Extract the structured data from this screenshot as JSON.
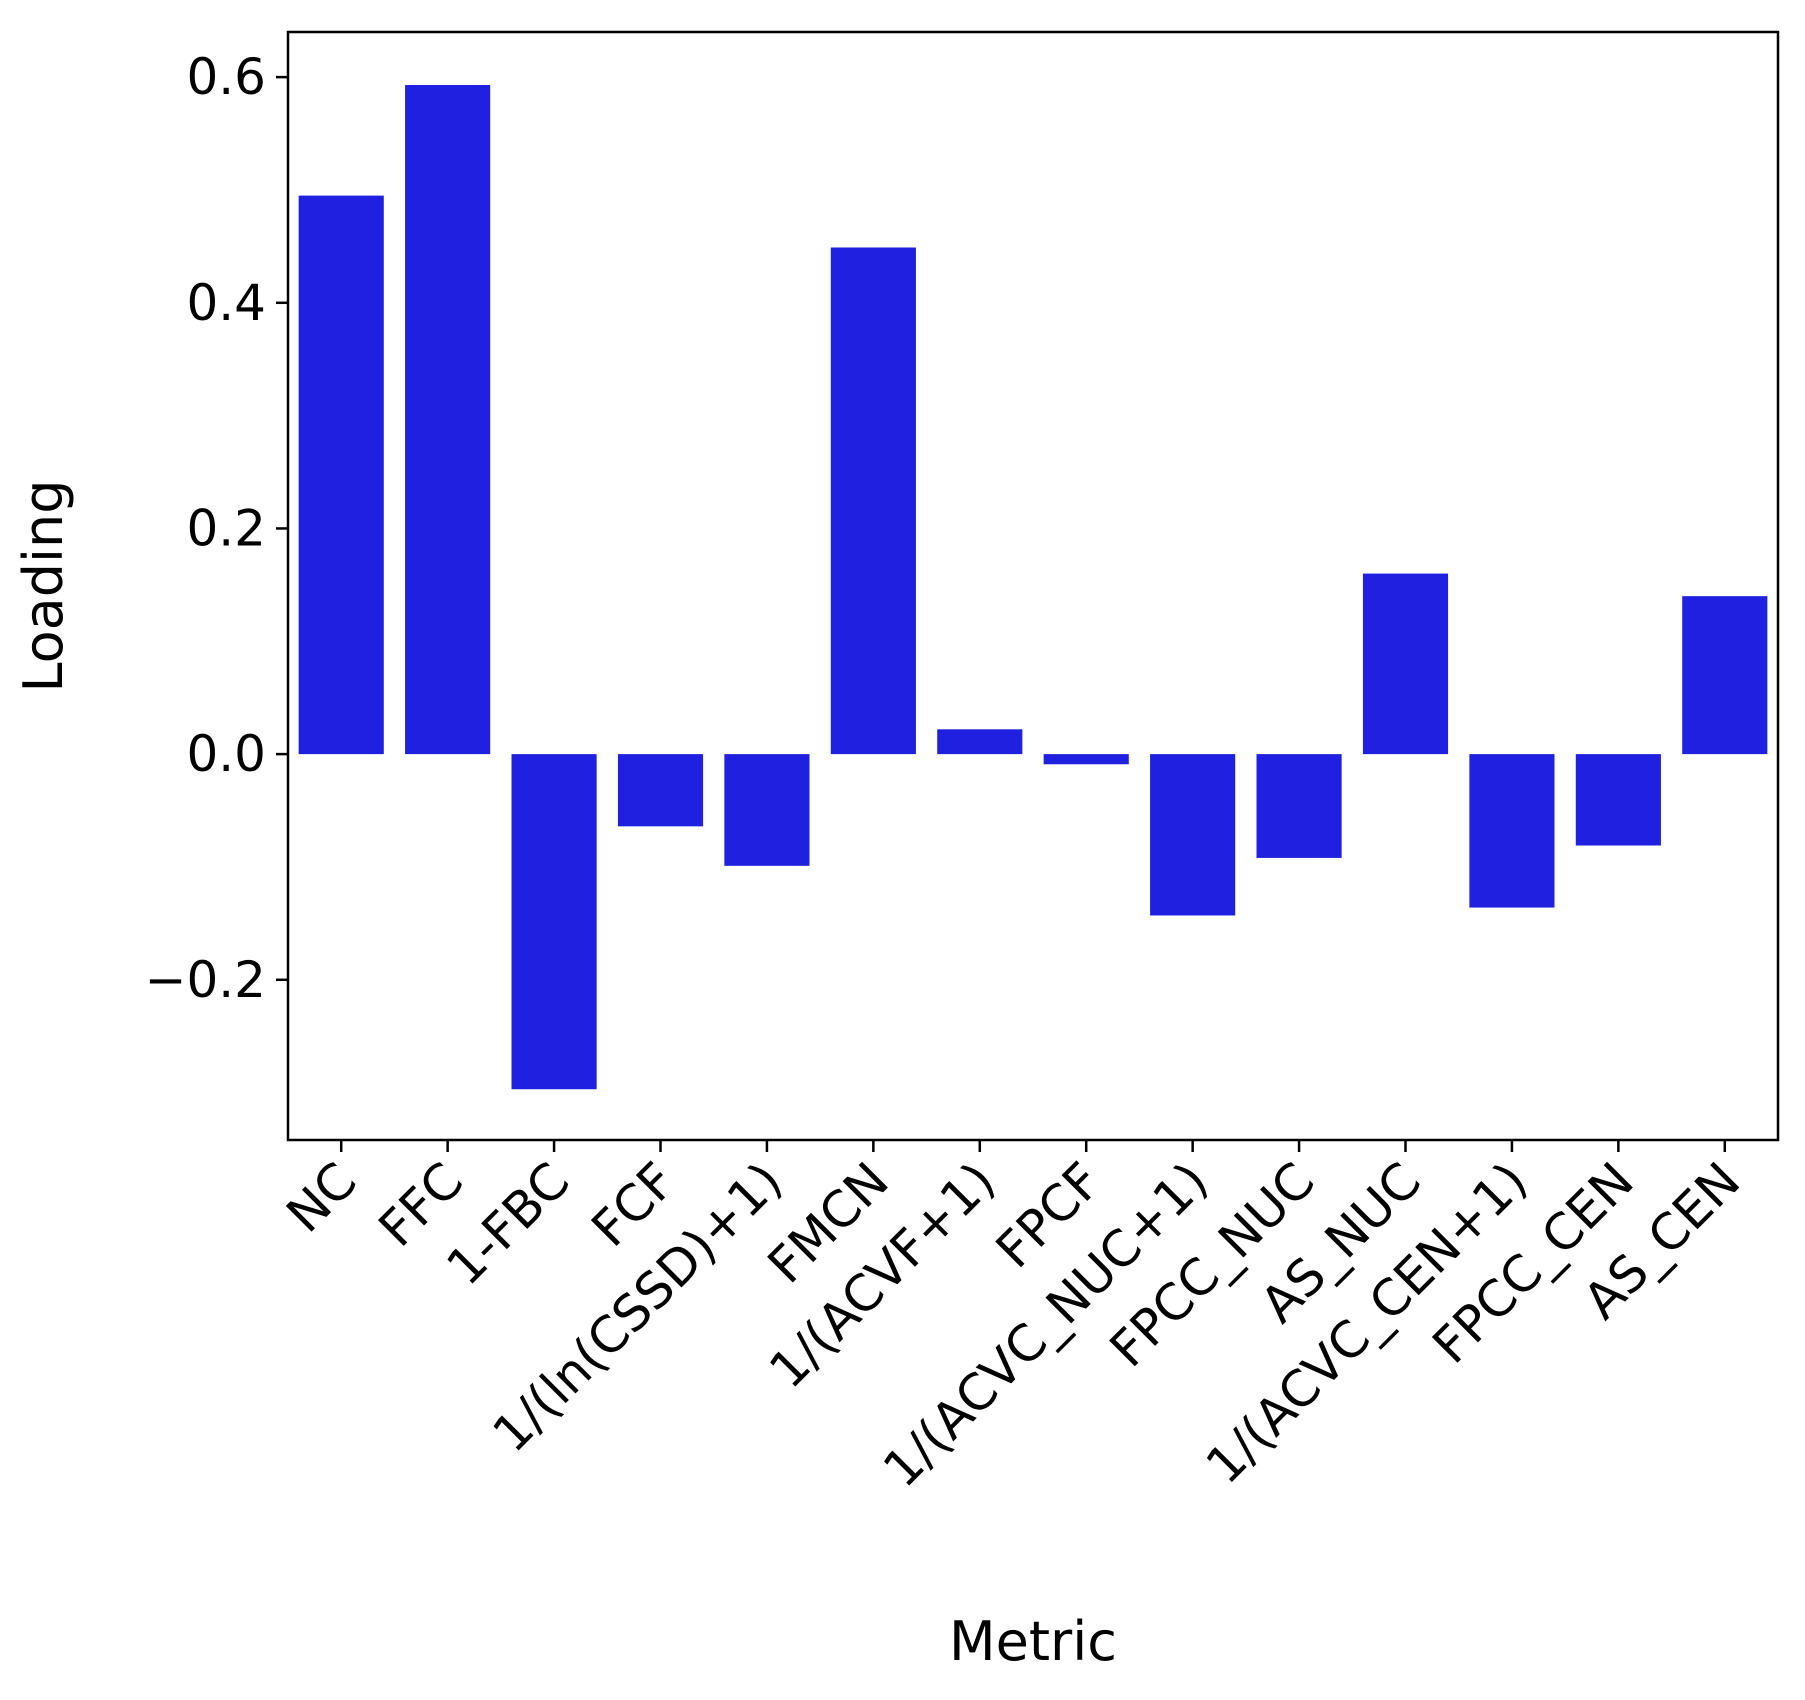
{
  "chart_data": {
    "type": "bar",
    "title": "",
    "xlabel": "Metric",
    "ylabel": "Loading",
    "categories": [
      "NC",
      "FFC",
      "1-FBC",
      "FCF",
      "1/(ln(CSSD)+1)",
      "FMCN",
      "1/(ACVF+1)",
      "FPCF",
      "1/(ACVC_NUC+1)",
      "FPCC_NUC",
      "AS_NUC",
      "1/(ACVC_CEN+1)",
      "FPCC_CEN",
      "AS_CEN"
    ],
    "values": [
      0.495,
      0.593,
      -0.297,
      -0.064,
      -0.099,
      0.449,
      0.022,
      -0.009,
      -0.143,
      -0.092,
      0.16,
      -0.136,
      -0.081,
      0.14
    ],
    "ylim": [
      -0.342,
      0.64
    ],
    "yticks": [
      -0.2,
      0.0,
      0.2,
      0.4,
      0.6
    ],
    "ytick_labels": [
      "−0.2",
      "0.0",
      "0.2",
      "0.4",
      "0.6"
    ],
    "bar_color": "#2020e0",
    "grid": false,
    "legend": "none"
  }
}
